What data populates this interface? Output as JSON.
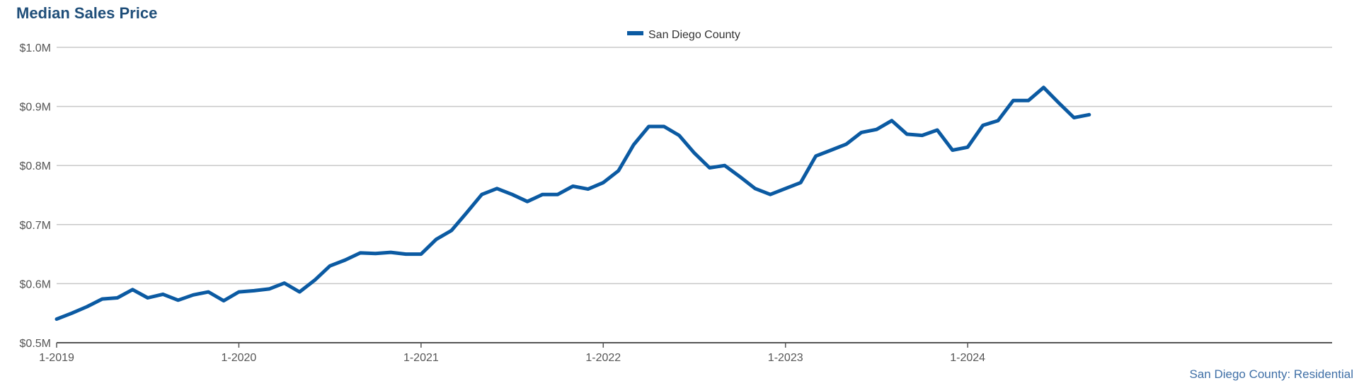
{
  "chart_data": {
    "type": "line",
    "title": "Median Sales Price",
    "source_note": "San Diego County: Residential",
    "xlabel": "",
    "ylabel": "",
    "ylim": [
      0.5,
      1.0
    ],
    "y_ticks": [
      0.5,
      0.6,
      0.7,
      0.8,
      0.9,
      1.0
    ],
    "y_tick_labels": [
      "$0.5M",
      "$0.6M",
      "$0.7M",
      "$0.8M",
      "$0.9M",
      "$1.0M"
    ],
    "x_ticks": [
      "2019-01",
      "2020-01",
      "2021-01",
      "2022-01",
      "2023-01",
      "2024-01"
    ],
    "x_tick_labels": [
      "1-2019",
      "1-2020",
      "1-2021",
      "1-2022",
      "1-2023",
      "1-2024"
    ],
    "xlim": [
      "2019-01",
      "2026-01"
    ],
    "grid": true,
    "legend_position": "top-center",
    "series": [
      {
        "name": "San Diego County",
        "color": "#0b5aa2",
        "x": [
          "2019-01",
          "2019-02",
          "2019-03",
          "2019-04",
          "2019-05",
          "2019-06",
          "2019-07",
          "2019-08",
          "2019-09",
          "2019-10",
          "2019-11",
          "2019-12",
          "2020-01",
          "2020-02",
          "2020-03",
          "2020-04",
          "2020-05",
          "2020-06",
          "2020-07",
          "2020-08",
          "2020-09",
          "2020-10",
          "2020-11",
          "2020-12",
          "2021-01",
          "2021-02",
          "2021-03",
          "2021-04",
          "2021-05",
          "2021-06",
          "2021-07",
          "2021-08",
          "2021-09",
          "2021-10",
          "2021-11",
          "2021-12",
          "2022-01",
          "2022-02",
          "2022-03",
          "2022-04",
          "2022-05",
          "2022-06",
          "2022-07",
          "2022-08",
          "2022-09",
          "2022-10",
          "2022-11",
          "2022-12",
          "2023-01",
          "2023-02",
          "2023-03",
          "2023-04",
          "2023-05",
          "2023-06",
          "2023-07",
          "2023-08",
          "2023-09",
          "2023-10",
          "2023-11",
          "2023-12",
          "2024-01",
          "2024-02",
          "2024-03",
          "2024-04",
          "2024-05",
          "2024-06",
          "2024-07",
          "2024-08",
          "2024-09"
        ],
        "values": [
          0.54,
          0.55,
          0.561,
          0.574,
          0.576,
          0.59,
          0.576,
          0.582,
          0.572,
          0.581,
          0.586,
          0.571,
          0.586,
          0.588,
          0.591,
          0.601,
          0.586,
          0.606,
          0.63,
          0.64,
          0.652,
          0.651,
          0.653,
          0.65,
          0.65,
          0.675,
          0.69,
          0.72,
          0.751,
          0.761,
          0.751,
          0.739,
          0.751,
          0.751,
          0.765,
          0.76,
          0.771,
          0.791,
          0.835,
          0.866,
          0.866,
          0.851,
          0.821,
          0.796,
          0.8,
          0.781,
          0.761,
          0.751,
          0.761,
          0.771,
          0.816,
          0.826,
          0.836,
          0.856,
          0.861,
          0.876,
          0.853,
          0.851,
          0.86,
          0.826,
          0.831,
          0.868,
          0.876,
          0.91,
          0.91,
          0.932,
          0.906,
          0.881,
          0.886
        ]
      }
    ]
  }
}
